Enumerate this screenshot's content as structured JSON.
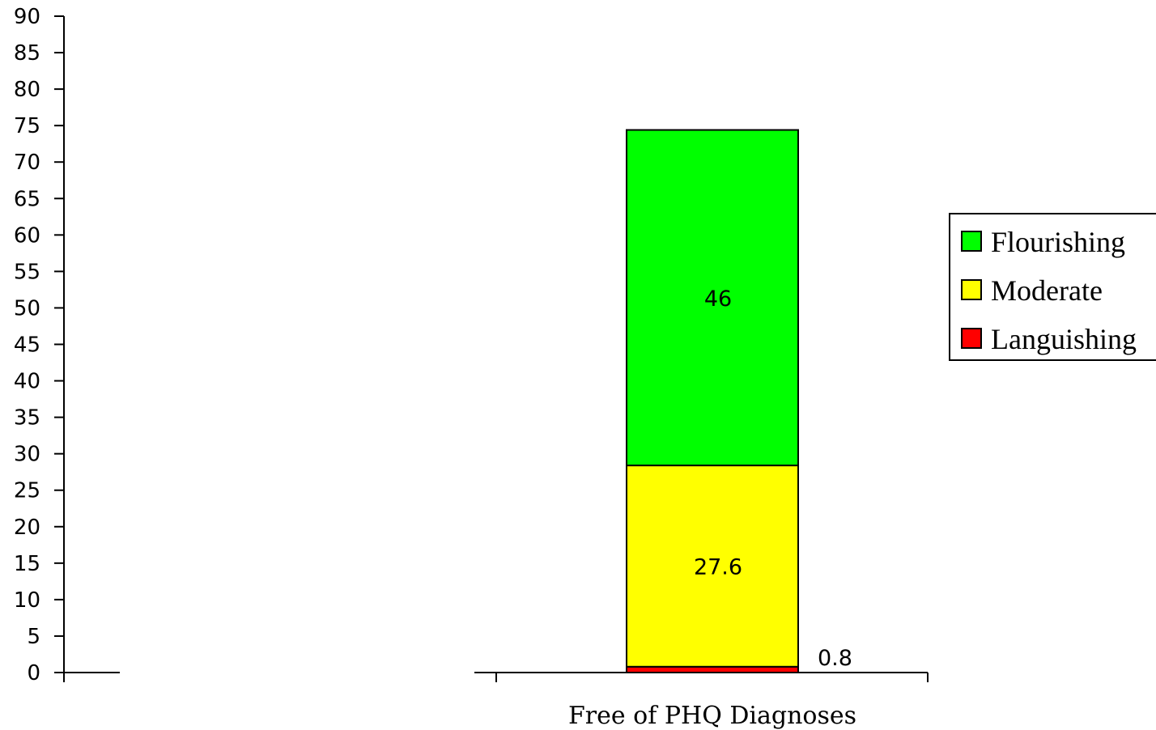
{
  "chart_data": {
    "type": "bar",
    "stacked": true,
    "categories": [
      "Free of PHQ Diagnoses"
    ],
    "series": [
      {
        "name": "Languishing",
        "values": [
          0.8
        ],
        "color": "#ff0000",
        "labels": [
          "0.8"
        ]
      },
      {
        "name": "Moderate",
        "values": [
          27.6
        ],
        "color": "#ffff00",
        "labels": [
          "27.6"
        ]
      },
      {
        "name": "Flourishing",
        "values": [
          46
        ],
        "color": "#00ff00",
        "labels": [
          "46"
        ]
      }
    ],
    "ylim": [
      0,
      90
    ],
    "yticks": [
      "0",
      "5",
      "10",
      "15",
      "20",
      "25",
      "30",
      "35",
      "40",
      "45",
      "50",
      "55",
      "60",
      "65",
      "70",
      "75",
      "80",
      "85",
      "90"
    ],
    "grid": false,
    "legend": {
      "position": "right",
      "order": [
        "Flourishing",
        "Moderate",
        "Languishing"
      ]
    }
  }
}
